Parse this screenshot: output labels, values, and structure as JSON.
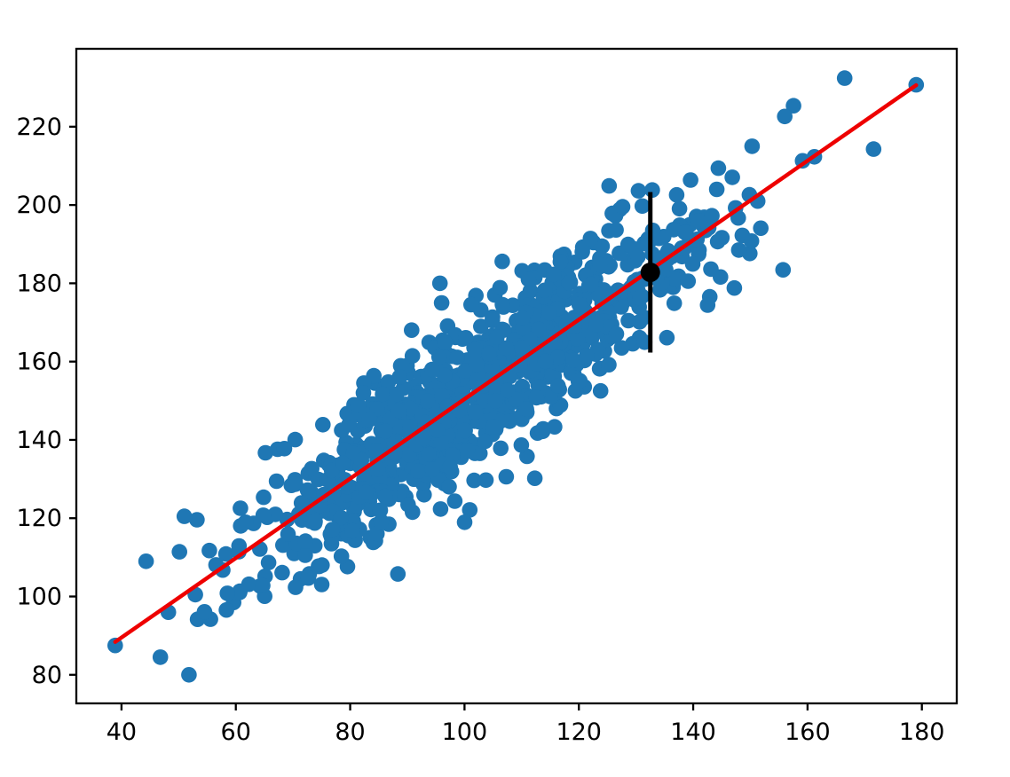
{
  "chart_data": {
    "type": "scatter",
    "title": "",
    "xlabel": "",
    "ylabel": "",
    "grid": false,
    "legend": null,
    "background": "#ffffff",
    "axis_color": "#000000",
    "xlim": [
      32.1,
      186.1
    ],
    "ylim": [
      72.7,
      239.9
    ],
    "xticks": [
      40,
      60,
      80,
      100,
      120,
      140,
      160,
      180
    ],
    "yticks": [
      80,
      100,
      120,
      140,
      160,
      180,
      200,
      220
    ],
    "series": [
      {
        "name": "samples",
        "type": "scatter",
        "color": "#1f77b4",
        "marker_radius": 8.8,
        "n": 1000,
        "generator": {
          "seed": 42,
          "x_mean": 102,
          "x_std": 20.5,
          "x_range": [
            39.0,
            179.3
          ],
          "slope": 1.0146,
          "intercept": 48.9,
          "noise_std": 10,
          "y_range": [
            79.5,
            232.5
          ]
        },
        "pinned_points": [
          [
            38.9,
            87.5
          ],
          [
            44.3,
            109.0
          ],
          [
            46.8,
            84.5
          ],
          [
            48.2,
            96.0
          ],
          [
            51.8,
            80.0
          ],
          [
            53.2,
            119.6
          ],
          [
            95.7,
            180.0
          ],
          [
            96.0,
            175.0
          ],
          [
            106.6,
            185.6
          ],
          [
            112.3,
            130.2
          ],
          [
            144.4,
            209.4
          ],
          [
            147.2,
            178.8
          ],
          [
            149.9,
            187.6
          ],
          [
            150.3,
            215.0
          ],
          [
            161.2,
            212.3
          ],
          [
            166.5,
            232.4
          ],
          [
            179.0,
            230.7
          ]
        ]
      }
    ],
    "fit_line": {
      "name": "regression-line",
      "color": "#ee0000",
      "width": 4.5,
      "x": [
        38.9,
        179.0
      ],
      "y": [
        88.4,
        230.6
      ]
    },
    "error_point": {
      "name": "prediction-point",
      "x": 132.5,
      "y": 182.8,
      "yerr": 20.5,
      "color": "#000000",
      "marker_radius": 11,
      "line_width": 5
    }
  }
}
